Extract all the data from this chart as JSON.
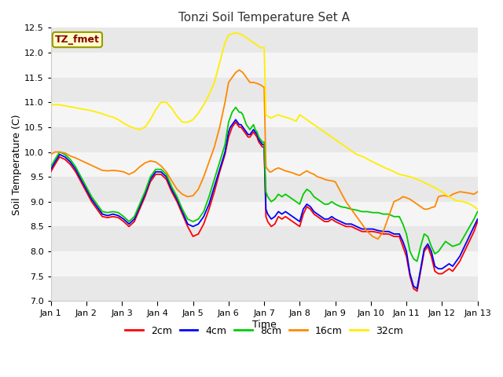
{
  "title": "Tonzi Soil Temperature Set A",
  "xlabel": "Time",
  "ylabel": "Soil Temperature (C)",
  "ylim": [
    7.0,
    12.5
  ],
  "xlim": [
    0,
    12
  ],
  "xtick_labels": [
    "Jan 1",
    "Jan 2",
    "Jan 3",
    "Jan 4",
    "Jan 5",
    "Jan 6",
    "Jan 7",
    "Jan 8",
    "Jan 9",
    "Jan 10",
    "Jan 11",
    "Jan 12",
    "Jan 13"
  ],
  "annotation_text": "TZ_fmet",
  "annotation_box_facecolor": "#ffffcc",
  "annotation_text_color": "#8b0000",
  "annotation_edge_color": "#999900",
  "legend_labels": [
    "2cm",
    "4cm",
    "8cm",
    "16cm",
    "32cm"
  ],
  "legend_colors": [
    "#ff0000",
    "#0000ff",
    "#00cc00",
    "#ff8800",
    "#ffee00"
  ],
  "yticks": [
    7.0,
    7.5,
    8.0,
    8.5,
    9.0,
    9.5,
    10.0,
    10.5,
    11.0,
    11.5,
    12.0,
    12.5
  ],
  "grid_band_colors": [
    "#e8e8e8",
    "#f5f5f5"
  ],
  "series": {
    "2cm": {
      "color": "#ff0000",
      "x": [
        0,
        0.12,
        0.25,
        0.4,
        0.55,
        0.7,
        0.85,
        1.0,
        1.15,
        1.3,
        1.45,
        1.6,
        1.75,
        1.9,
        2.05,
        2.2,
        2.35,
        2.5,
        2.65,
        2.8,
        2.95,
        3.1,
        3.25,
        3.4,
        3.55,
        3.7,
        3.85,
        4.0,
        4.15,
        4.3,
        4.45,
        4.6,
        4.75,
        4.9,
        5.0,
        5.05,
        5.1,
        5.15,
        5.2,
        5.25,
        5.3,
        5.35,
        5.4,
        5.45,
        5.5,
        5.55,
        5.6,
        5.65,
        5.7,
        5.75,
        5.8,
        5.85,
        5.9,
        5.95,
        6.0,
        6.05,
        6.1,
        6.15,
        6.2,
        6.3,
        6.4,
        6.5,
        6.6,
        6.7,
        6.8,
        6.9,
        7.0,
        7.1,
        7.2,
        7.3,
        7.4,
        7.5,
        7.6,
        7.7,
        7.8,
        7.9,
        8.0,
        8.15,
        8.3,
        8.45,
        8.6,
        8.75,
        8.9,
        9.05,
        9.2,
        9.35,
        9.5,
        9.65,
        9.8,
        9.9,
        10.0,
        10.1,
        10.2,
        10.3,
        10.4,
        10.5,
        10.6,
        10.7,
        10.8,
        10.9,
        11.0,
        11.1,
        11.2,
        11.3,
        11.5,
        11.7,
        11.9,
        12.0
      ],
      "y": [
        9.6,
        9.75,
        9.9,
        9.85,
        9.75,
        9.6,
        9.4,
        9.2,
        9.0,
        8.85,
        8.7,
        8.68,
        8.7,
        8.68,
        8.6,
        8.5,
        8.6,
        8.85,
        9.1,
        9.4,
        9.55,
        9.55,
        9.45,
        9.2,
        9.0,
        8.75,
        8.5,
        8.3,
        8.35,
        8.55,
        8.85,
        9.2,
        9.6,
        9.95,
        10.3,
        10.4,
        10.5,
        10.55,
        10.6,
        10.55,
        10.5,
        10.5,
        10.45,
        10.4,
        10.35,
        10.3,
        10.3,
        10.35,
        10.4,
        10.35,
        10.3,
        10.2,
        10.15,
        10.1,
        10.1,
        8.7,
        8.6,
        8.55,
        8.5,
        8.55,
        8.7,
        8.65,
        8.7,
        8.65,
        8.6,
        8.55,
        8.5,
        8.75,
        8.9,
        8.85,
        8.75,
        8.7,
        8.65,
        8.6,
        8.6,
        8.65,
        8.6,
        8.55,
        8.5,
        8.5,
        8.45,
        8.4,
        8.4,
        8.4,
        8.38,
        8.35,
        8.35,
        8.3,
        8.3,
        8.1,
        7.9,
        7.5,
        7.25,
        7.2,
        7.6,
        8.0,
        8.1,
        7.9,
        7.6,
        7.55,
        7.55,
        7.6,
        7.65,
        7.6,
        7.8,
        8.1,
        8.4,
        8.6
      ]
    },
    "4cm": {
      "color": "#0000ff",
      "x": [
        0,
        0.12,
        0.25,
        0.4,
        0.55,
        0.7,
        0.85,
        1.0,
        1.15,
        1.3,
        1.45,
        1.6,
        1.75,
        1.9,
        2.05,
        2.2,
        2.35,
        2.5,
        2.65,
        2.8,
        2.95,
        3.1,
        3.25,
        3.4,
        3.55,
        3.7,
        3.85,
        4.0,
        4.15,
        4.3,
        4.45,
        4.6,
        4.75,
        4.9,
        5.0,
        5.05,
        5.1,
        5.15,
        5.2,
        5.25,
        5.3,
        5.35,
        5.4,
        5.45,
        5.5,
        5.55,
        5.6,
        5.65,
        5.7,
        5.75,
        5.8,
        5.85,
        5.9,
        5.95,
        6.0,
        6.05,
        6.1,
        6.15,
        6.2,
        6.3,
        6.4,
        6.5,
        6.6,
        6.7,
        6.8,
        6.9,
        7.0,
        7.1,
        7.2,
        7.3,
        7.4,
        7.5,
        7.6,
        7.7,
        7.8,
        7.9,
        8.0,
        8.15,
        8.3,
        8.45,
        8.6,
        8.75,
        8.9,
        9.05,
        9.2,
        9.35,
        9.5,
        9.65,
        9.8,
        9.9,
        10.0,
        10.1,
        10.2,
        10.3,
        10.4,
        10.5,
        10.6,
        10.7,
        10.8,
        10.9,
        11.0,
        11.1,
        11.2,
        11.3,
        11.5,
        11.7,
        11.9,
        12.0
      ],
      "y": [
        9.65,
        9.8,
        9.95,
        9.9,
        9.8,
        9.65,
        9.45,
        9.25,
        9.05,
        8.9,
        8.75,
        8.72,
        8.75,
        8.72,
        8.65,
        8.55,
        8.65,
        8.9,
        9.15,
        9.45,
        9.6,
        9.6,
        9.5,
        9.25,
        9.05,
        8.8,
        8.55,
        8.5,
        8.55,
        8.7,
        8.95,
        9.3,
        9.65,
        10.0,
        10.4,
        10.5,
        10.55,
        10.6,
        10.65,
        10.6,
        10.55,
        10.55,
        10.5,
        10.45,
        10.4,
        10.35,
        10.35,
        10.4,
        10.45,
        10.4,
        10.35,
        10.25,
        10.2,
        10.15,
        10.15,
        8.85,
        8.75,
        8.7,
        8.65,
        8.7,
        8.8,
        8.75,
        8.8,
        8.75,
        8.7,
        8.65,
        8.6,
        8.85,
        8.95,
        8.9,
        8.8,
        8.75,
        8.7,
        8.65,
        8.65,
        8.7,
        8.65,
        8.6,
        8.55,
        8.55,
        8.5,
        8.45,
        8.45,
        8.45,
        8.42,
        8.4,
        8.4,
        8.35,
        8.35,
        8.2,
        8.0,
        7.55,
        7.3,
        7.25,
        7.65,
        8.05,
        8.15,
        8.0,
        7.7,
        7.65,
        7.65,
        7.7,
        7.75,
        7.7,
        7.9,
        8.2,
        8.5,
        8.65
      ]
    },
    "8cm": {
      "color": "#00cc00",
      "x": [
        0,
        0.12,
        0.25,
        0.4,
        0.55,
        0.7,
        0.85,
        1.0,
        1.15,
        1.3,
        1.45,
        1.6,
        1.75,
        1.9,
        2.05,
        2.2,
        2.35,
        2.5,
        2.65,
        2.8,
        2.95,
        3.1,
        3.25,
        3.4,
        3.55,
        3.7,
        3.85,
        4.0,
        4.15,
        4.3,
        4.45,
        4.6,
        4.75,
        4.9,
        5.0,
        5.05,
        5.1,
        5.15,
        5.2,
        5.25,
        5.3,
        5.35,
        5.4,
        5.45,
        5.5,
        5.55,
        5.6,
        5.65,
        5.7,
        5.75,
        5.8,
        5.85,
        5.9,
        5.95,
        6.0,
        6.05,
        6.1,
        6.15,
        6.2,
        6.3,
        6.4,
        6.5,
        6.6,
        6.7,
        6.8,
        6.9,
        7.0,
        7.1,
        7.2,
        7.3,
        7.4,
        7.5,
        7.6,
        7.7,
        7.8,
        7.9,
        8.0,
        8.15,
        8.3,
        8.45,
        8.6,
        8.75,
        8.9,
        9.05,
        9.2,
        9.35,
        9.5,
        9.65,
        9.8,
        9.9,
        10.0,
        10.1,
        10.2,
        10.3,
        10.4,
        10.5,
        10.6,
        10.7,
        10.8,
        10.9,
        11.0,
        11.1,
        11.2,
        11.3,
        11.5,
        11.7,
        11.9,
        12.0
      ],
      "y": [
        9.7,
        9.85,
        10.0,
        9.95,
        9.85,
        9.7,
        9.5,
        9.3,
        9.1,
        8.95,
        8.8,
        8.78,
        8.8,
        8.78,
        8.7,
        8.6,
        8.7,
        8.95,
        9.2,
        9.5,
        9.65,
        9.65,
        9.55,
        9.3,
        9.1,
        8.85,
        8.65,
        8.6,
        8.65,
        8.8,
        9.1,
        9.45,
        9.8,
        10.15,
        10.6,
        10.7,
        10.8,
        10.85,
        10.9,
        10.85,
        10.8,
        10.8,
        10.75,
        10.65,
        10.55,
        10.5,
        10.45,
        10.5,
        10.55,
        10.45,
        10.4,
        10.3,
        10.25,
        10.2,
        10.2,
        9.2,
        9.1,
        9.05,
        9.0,
        9.05,
        9.15,
        9.1,
        9.15,
        9.1,
        9.05,
        9.0,
        8.95,
        9.15,
        9.25,
        9.2,
        9.1,
        9.05,
        9.0,
        8.95,
        8.95,
        9.0,
        8.95,
        8.9,
        8.88,
        8.85,
        8.83,
        8.8,
        8.8,
        8.78,
        8.78,
        8.75,
        8.75,
        8.7,
        8.7,
        8.55,
        8.35,
        8.0,
        7.85,
        7.8,
        8.1,
        8.35,
        8.3,
        8.1,
        7.95,
        8.0,
        8.1,
        8.2,
        8.15,
        8.1,
        8.15,
        8.4,
        8.65,
        8.8
      ]
    },
    "16cm": {
      "color": "#ff8800",
      "x": [
        0,
        0.12,
        0.25,
        0.4,
        0.55,
        0.7,
        0.85,
        1.0,
        1.15,
        1.3,
        1.45,
        1.6,
        1.75,
        1.9,
        2.05,
        2.2,
        2.35,
        2.5,
        2.65,
        2.8,
        2.95,
        3.1,
        3.25,
        3.4,
        3.55,
        3.7,
        3.85,
        4.0,
        4.15,
        4.3,
        4.45,
        4.6,
        4.75,
        4.9,
        5.0,
        5.1,
        5.2,
        5.3,
        5.4,
        5.5,
        5.6,
        5.7,
        5.8,
        5.9,
        6.0,
        6.05,
        6.1,
        6.15,
        6.2,
        6.3,
        6.4,
        6.5,
        6.6,
        6.7,
        6.8,
        6.9,
        7.0,
        7.1,
        7.2,
        7.3,
        7.4,
        7.5,
        7.6,
        7.7,
        7.8,
        7.9,
        8.0,
        8.15,
        8.3,
        8.45,
        8.6,
        8.75,
        8.9,
        9.05,
        9.2,
        9.35,
        9.5,
        9.65,
        9.8,
        9.9,
        10.0,
        10.1,
        10.2,
        10.3,
        10.4,
        10.5,
        10.6,
        10.7,
        10.8,
        10.9,
        11.0,
        11.1,
        11.2,
        11.3,
        11.5,
        11.7,
        11.9,
        12.0
      ],
      "y": [
        9.95,
        10.0,
        10.0,
        9.98,
        9.92,
        9.88,
        9.83,
        9.78,
        9.73,
        9.68,
        9.63,
        9.62,
        9.63,
        9.62,
        9.6,
        9.55,
        9.6,
        9.7,
        9.78,
        9.82,
        9.8,
        9.72,
        9.6,
        9.42,
        9.25,
        9.15,
        9.1,
        9.12,
        9.25,
        9.5,
        9.8,
        10.1,
        10.5,
        11.0,
        11.4,
        11.5,
        11.6,
        11.65,
        11.6,
        11.5,
        11.4,
        11.4,
        11.38,
        11.35,
        11.3,
        9.7,
        9.65,
        9.6,
        9.6,
        9.65,
        9.68,
        9.65,
        9.62,
        9.6,
        9.58,
        9.55,
        9.53,
        9.58,
        9.62,
        9.58,
        9.55,
        9.5,
        9.48,
        9.45,
        9.43,
        9.42,
        9.4,
        9.2,
        9.0,
        8.85,
        8.7,
        8.55,
        8.4,
        8.3,
        8.25,
        8.4,
        8.7,
        9.0,
        9.05,
        9.1,
        9.08,
        9.05,
        9.0,
        8.95,
        8.9,
        8.85,
        8.85,
        8.88,
        8.9,
        9.1,
        9.12,
        9.12,
        9.1,
        9.15,
        9.2,
        9.18,
        9.15,
        9.2
      ]
    },
    "32cm": {
      "color": "#ffee00",
      "x": [
        0,
        0.12,
        0.25,
        0.4,
        0.55,
        0.7,
        0.85,
        1.0,
        1.15,
        1.3,
        1.45,
        1.6,
        1.75,
        1.9,
        2.05,
        2.2,
        2.35,
        2.5,
        2.65,
        2.8,
        2.95,
        3.1,
        3.25,
        3.4,
        3.55,
        3.7,
        3.85,
        4.0,
        4.15,
        4.3,
        4.45,
        4.6,
        4.75,
        4.9,
        5.0,
        5.1,
        5.2,
        5.3,
        5.4,
        5.5,
        5.6,
        5.7,
        5.8,
        5.9,
        6.0,
        6.05,
        6.1,
        6.15,
        6.2,
        6.3,
        6.4,
        6.5,
        6.6,
        6.7,
        6.8,
        6.9,
        7.0,
        7.1,
        7.2,
        7.3,
        7.4,
        7.5,
        7.6,
        7.7,
        7.8,
        7.9,
        8.0,
        8.2,
        8.4,
        8.6,
        8.8,
        9.0,
        9.2,
        9.4,
        9.6,
        9.8,
        10.0,
        10.2,
        10.4,
        10.6,
        10.8,
        11.0,
        11.2,
        11.4,
        11.6,
        11.8,
        12.0
      ],
      "y": [
        10.95,
        10.95,
        10.95,
        10.93,
        10.91,
        10.89,
        10.87,
        10.85,
        10.83,
        10.8,
        10.77,
        10.73,
        10.7,
        10.65,
        10.58,
        10.52,
        10.48,
        10.45,
        10.5,
        10.65,
        10.85,
        11.0,
        11.0,
        10.88,
        10.72,
        10.6,
        10.6,
        10.65,
        10.78,
        10.95,
        11.15,
        11.4,
        11.8,
        12.2,
        12.35,
        12.38,
        12.4,
        12.38,
        12.35,
        12.3,
        12.25,
        12.2,
        12.15,
        12.1,
        12.1,
        10.75,
        10.72,
        10.7,
        10.68,
        10.72,
        10.75,
        10.72,
        10.7,
        10.68,
        10.65,
        10.62,
        10.75,
        10.7,
        10.65,
        10.6,
        10.55,
        10.5,
        10.45,
        10.4,
        10.35,
        10.3,
        10.25,
        10.15,
        10.05,
        9.95,
        9.9,
        9.82,
        9.75,
        9.68,
        9.62,
        9.55,
        9.52,
        9.48,
        9.42,
        9.35,
        9.28,
        9.2,
        9.1,
        9.02,
        9.0,
        8.95,
        8.85
      ]
    }
  }
}
